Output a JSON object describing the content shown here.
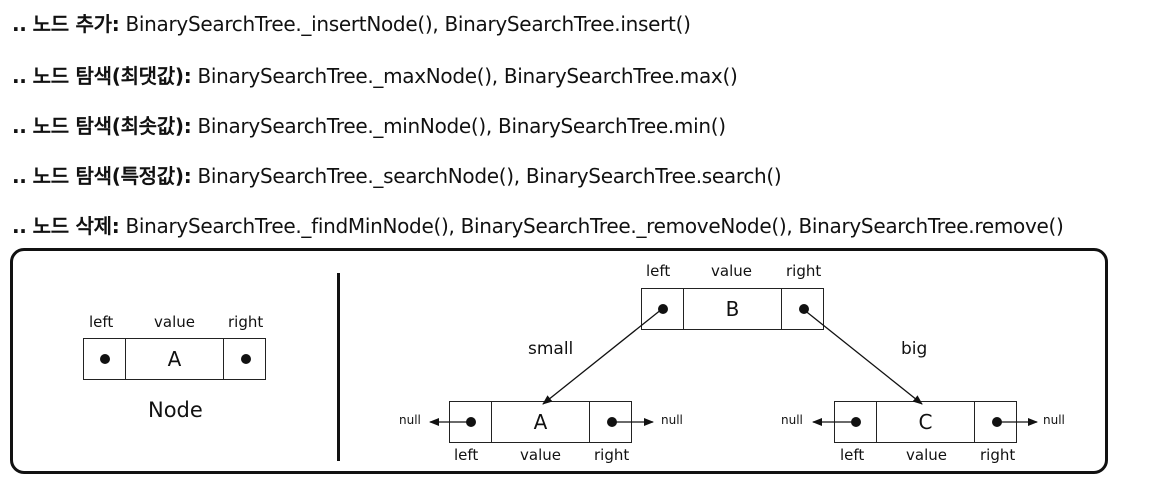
{
  "operations": [
    {
      "prefix": "..",
      "label": "노드 추가:",
      "methods": "BinarySearchTree._insertNode(), BinarySearchTree.insert()"
    },
    {
      "prefix": "..",
      "label": "노드 탐색(최댓값):",
      "methods": "BinarySearchTree._maxNode(), BinarySearchTree.max()"
    },
    {
      "prefix": "..",
      "label": "노드 탐색(최솟값):",
      "methods": "BinarySearchTree._minNode(), BinarySearchTree.min()"
    },
    {
      "prefix": "..",
      "label": "노드 탐색(특정값):",
      "methods": "BinarySearchTree._searchNode(), BinarySearchTree.search()"
    },
    {
      "prefix": "..",
      "label": "노드 삭제:",
      "methods": "BinarySearchTree._findMinNode(), BinarySearchTree._removeNode(), BinarySearchTree.remove()"
    }
  ],
  "diagram": {
    "field_left": "left",
    "field_value": "value",
    "field_right": "right",
    "node_caption": "Node",
    "null_label": "null",
    "edge_small": "small",
    "edge_big": "big",
    "nodes": {
      "legend": "A",
      "root": "B",
      "left_child": "A",
      "right_child": "C"
    }
  }
}
